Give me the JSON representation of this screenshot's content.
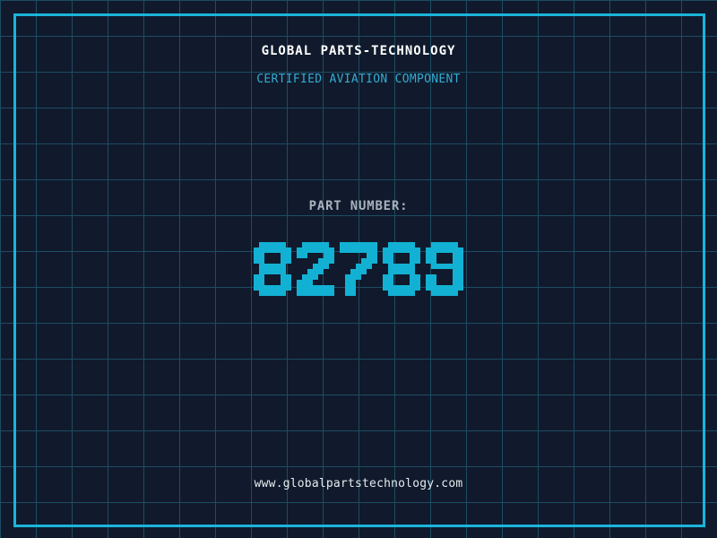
{
  "page": {
    "title": "GLOBAL PARTS-TECHNOLOGY",
    "subtitle": "CERTIFIED AVIATION COMPONENT",
    "part_label": "PART NUMBER:",
    "part_number": "82789",
    "website": "www.globalpartstechnology.com"
  },
  "colors": {
    "background": "#101a2c",
    "grid_line": "#1d4c63",
    "frame": "#1ab4da",
    "title": "#ffffff",
    "subtitle": "#35abd2",
    "part_label": "#a9b2bd",
    "part_number": "#12b1d4",
    "website": "#e6ebee"
  }
}
